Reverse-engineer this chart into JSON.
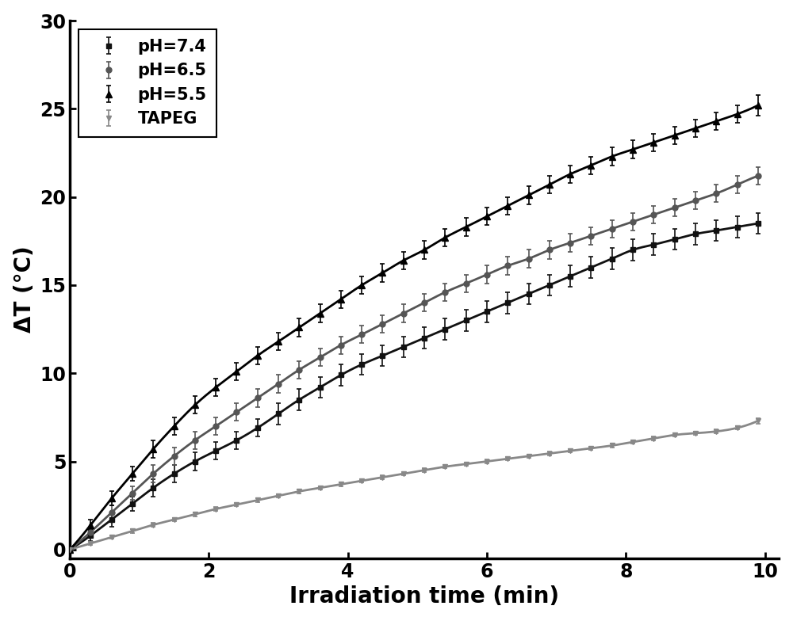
{
  "title": "",
  "xlabel": "Irradiation time (min)",
  "ylabel": "ΔT (°C)",
  "xlim": [
    0,
    10.2
  ],
  "ylim": [
    -0.5,
    30
  ],
  "yticks": [
    0,
    5,
    10,
    15,
    20,
    25,
    30
  ],
  "xticks": [
    0,
    2,
    4,
    6,
    8,
    10
  ],
  "series": [
    {
      "label": "pH=7.4",
      "color": "#111111",
      "marker": "s",
      "markersize": 5,
      "linewidth": 2.0,
      "x": [
        0,
        0.3,
        0.6,
        0.9,
        1.2,
        1.5,
        1.8,
        2.1,
        2.4,
        2.7,
        3.0,
        3.3,
        3.6,
        3.9,
        4.2,
        4.5,
        4.8,
        5.1,
        5.4,
        5.7,
        6.0,
        6.3,
        6.6,
        6.9,
        7.2,
        7.5,
        7.8,
        8.1,
        8.4,
        8.7,
        9.0,
        9.3,
        9.6,
        9.9
      ],
      "y": [
        0,
        0.8,
        1.7,
        2.6,
        3.5,
        4.3,
        5.0,
        5.6,
        6.2,
        6.9,
        7.7,
        8.5,
        9.2,
        9.9,
        10.5,
        11.0,
        11.5,
        12.0,
        12.5,
        13.0,
        13.5,
        14.0,
        14.5,
        15.0,
        15.5,
        16.0,
        16.5,
        17.0,
        17.3,
        17.6,
        17.9,
        18.1,
        18.3,
        18.5
      ],
      "yerr": [
        0,
        0.3,
        0.4,
        0.4,
        0.5,
        0.5,
        0.5,
        0.5,
        0.5,
        0.5,
        0.6,
        0.6,
        0.6,
        0.6,
        0.6,
        0.6,
        0.6,
        0.6,
        0.6,
        0.6,
        0.6,
        0.6,
        0.6,
        0.6,
        0.6,
        0.6,
        0.6,
        0.6,
        0.6,
        0.6,
        0.6,
        0.6,
        0.6,
        0.6
      ]
    },
    {
      "label": "pH=6.5",
      "color": "#555555",
      "marker": "o",
      "markersize": 5,
      "linewidth": 2.0,
      "x": [
        0,
        0.3,
        0.6,
        0.9,
        1.2,
        1.5,
        1.8,
        2.1,
        2.4,
        2.7,
        3.0,
        3.3,
        3.6,
        3.9,
        4.2,
        4.5,
        4.8,
        5.1,
        5.4,
        5.7,
        6.0,
        6.3,
        6.6,
        6.9,
        7.2,
        7.5,
        7.8,
        8.1,
        8.4,
        8.7,
        9.0,
        9.3,
        9.6,
        9.9
      ],
      "y": [
        0,
        1.0,
        2.1,
        3.2,
        4.3,
        5.3,
        6.2,
        7.0,
        7.8,
        8.6,
        9.4,
        10.2,
        10.9,
        11.6,
        12.2,
        12.8,
        13.4,
        14.0,
        14.6,
        15.1,
        15.6,
        16.1,
        16.5,
        17.0,
        17.4,
        17.8,
        18.2,
        18.6,
        19.0,
        19.4,
        19.8,
        20.2,
        20.7,
        21.2
      ],
      "yerr": [
        0,
        0.3,
        0.4,
        0.4,
        0.5,
        0.5,
        0.5,
        0.5,
        0.5,
        0.5,
        0.5,
        0.5,
        0.5,
        0.5,
        0.5,
        0.5,
        0.5,
        0.5,
        0.5,
        0.5,
        0.5,
        0.5,
        0.5,
        0.5,
        0.5,
        0.5,
        0.5,
        0.5,
        0.5,
        0.5,
        0.5,
        0.5,
        0.5,
        0.5
      ]
    },
    {
      "label": "pH=5.5",
      "color": "#000000",
      "marker": "^",
      "markersize": 6,
      "linewidth": 2.0,
      "x": [
        0,
        0.3,
        0.6,
        0.9,
        1.2,
        1.5,
        1.8,
        2.1,
        2.4,
        2.7,
        3.0,
        3.3,
        3.6,
        3.9,
        4.2,
        4.5,
        4.8,
        5.1,
        5.4,
        5.7,
        6.0,
        6.3,
        6.6,
        6.9,
        7.2,
        7.5,
        7.8,
        8.1,
        8.4,
        8.7,
        9.0,
        9.3,
        9.6,
        9.9
      ],
      "y": [
        0,
        1.4,
        2.9,
        4.3,
        5.7,
        7.0,
        8.2,
        9.2,
        10.1,
        11.0,
        11.8,
        12.6,
        13.4,
        14.2,
        15.0,
        15.7,
        16.4,
        17.0,
        17.7,
        18.3,
        18.9,
        19.5,
        20.1,
        20.7,
        21.3,
        21.8,
        22.3,
        22.7,
        23.1,
        23.5,
        23.9,
        24.3,
        24.7,
        25.2
      ],
      "yerr": [
        0,
        0.3,
        0.4,
        0.4,
        0.5,
        0.5,
        0.5,
        0.5,
        0.5,
        0.5,
        0.5,
        0.5,
        0.5,
        0.5,
        0.5,
        0.5,
        0.5,
        0.5,
        0.5,
        0.5,
        0.5,
        0.5,
        0.5,
        0.5,
        0.5,
        0.5,
        0.5,
        0.5,
        0.5,
        0.5,
        0.5,
        0.5,
        0.5,
        0.6
      ]
    },
    {
      "label": "TAPEG",
      "color": "#888888",
      "marker": "v",
      "markersize": 5,
      "linewidth": 2.0,
      "x": [
        0,
        0.3,
        0.6,
        0.9,
        1.2,
        1.5,
        1.8,
        2.1,
        2.4,
        2.7,
        3.0,
        3.3,
        3.6,
        3.9,
        4.2,
        4.5,
        4.8,
        5.1,
        5.4,
        5.7,
        6.0,
        6.3,
        6.6,
        6.9,
        7.2,
        7.5,
        7.8,
        8.1,
        8.4,
        8.7,
        9.0,
        9.3,
        9.6,
        9.9
      ],
      "y": [
        0,
        0.35,
        0.7,
        1.05,
        1.4,
        1.7,
        2.0,
        2.3,
        2.55,
        2.8,
        3.05,
        3.3,
        3.5,
        3.7,
        3.9,
        4.1,
        4.3,
        4.5,
        4.7,
        4.85,
        5.0,
        5.15,
        5.3,
        5.45,
        5.6,
        5.75,
        5.9,
        6.1,
        6.3,
        6.5,
        6.6,
        6.7,
        6.9,
        7.3
      ],
      "yerr": [
        0,
        0.1,
        0.1,
        0.1,
        0.1,
        0.1,
        0.1,
        0.1,
        0.1,
        0.1,
        0.1,
        0.1,
        0.1,
        0.1,
        0.1,
        0.1,
        0.1,
        0.1,
        0.1,
        0.1,
        0.1,
        0.1,
        0.1,
        0.1,
        0.1,
        0.1,
        0.1,
        0.1,
        0.1,
        0.1,
        0.1,
        0.1,
        0.1,
        0.15
      ]
    }
  ],
  "legend_loc": "upper left",
  "legend_fontsize": 15,
  "axis_label_fontsize": 20,
  "tick_fontsize": 17,
  "figure_bg": "#ffffff",
  "axes_bg": "#ffffff",
  "figsize": [
    10.0,
    7.84
  ]
}
